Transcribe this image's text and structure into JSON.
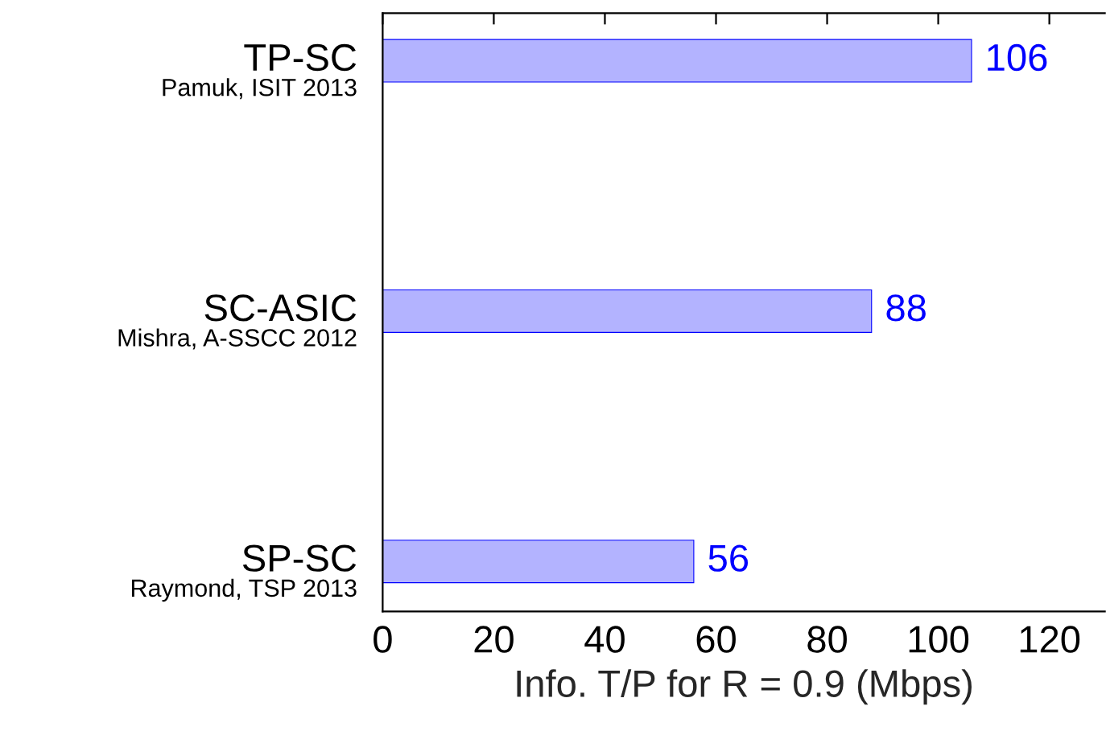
{
  "chart_data": {
    "type": "bar",
    "orientation": "horizontal",
    "categories": [
      "TP-SC\nPamuk, ISIT 2013",
      "SC-ASIC\nMishra, A-SSCC 2012",
      "SP-SC\nRaymond, TSP 2013"
    ],
    "values": [
      106,
      88,
      56
    ],
    "color": "#b3b3ff",
    "data_labels": true,
    "xlabel": "Info. T/P for R = 0.9 (Mbps)",
    "xlim": [
      0,
      130
    ],
    "xticks": [
      0,
      20,
      40,
      60,
      80,
      100,
      120
    ],
    "grid": false
  }
}
